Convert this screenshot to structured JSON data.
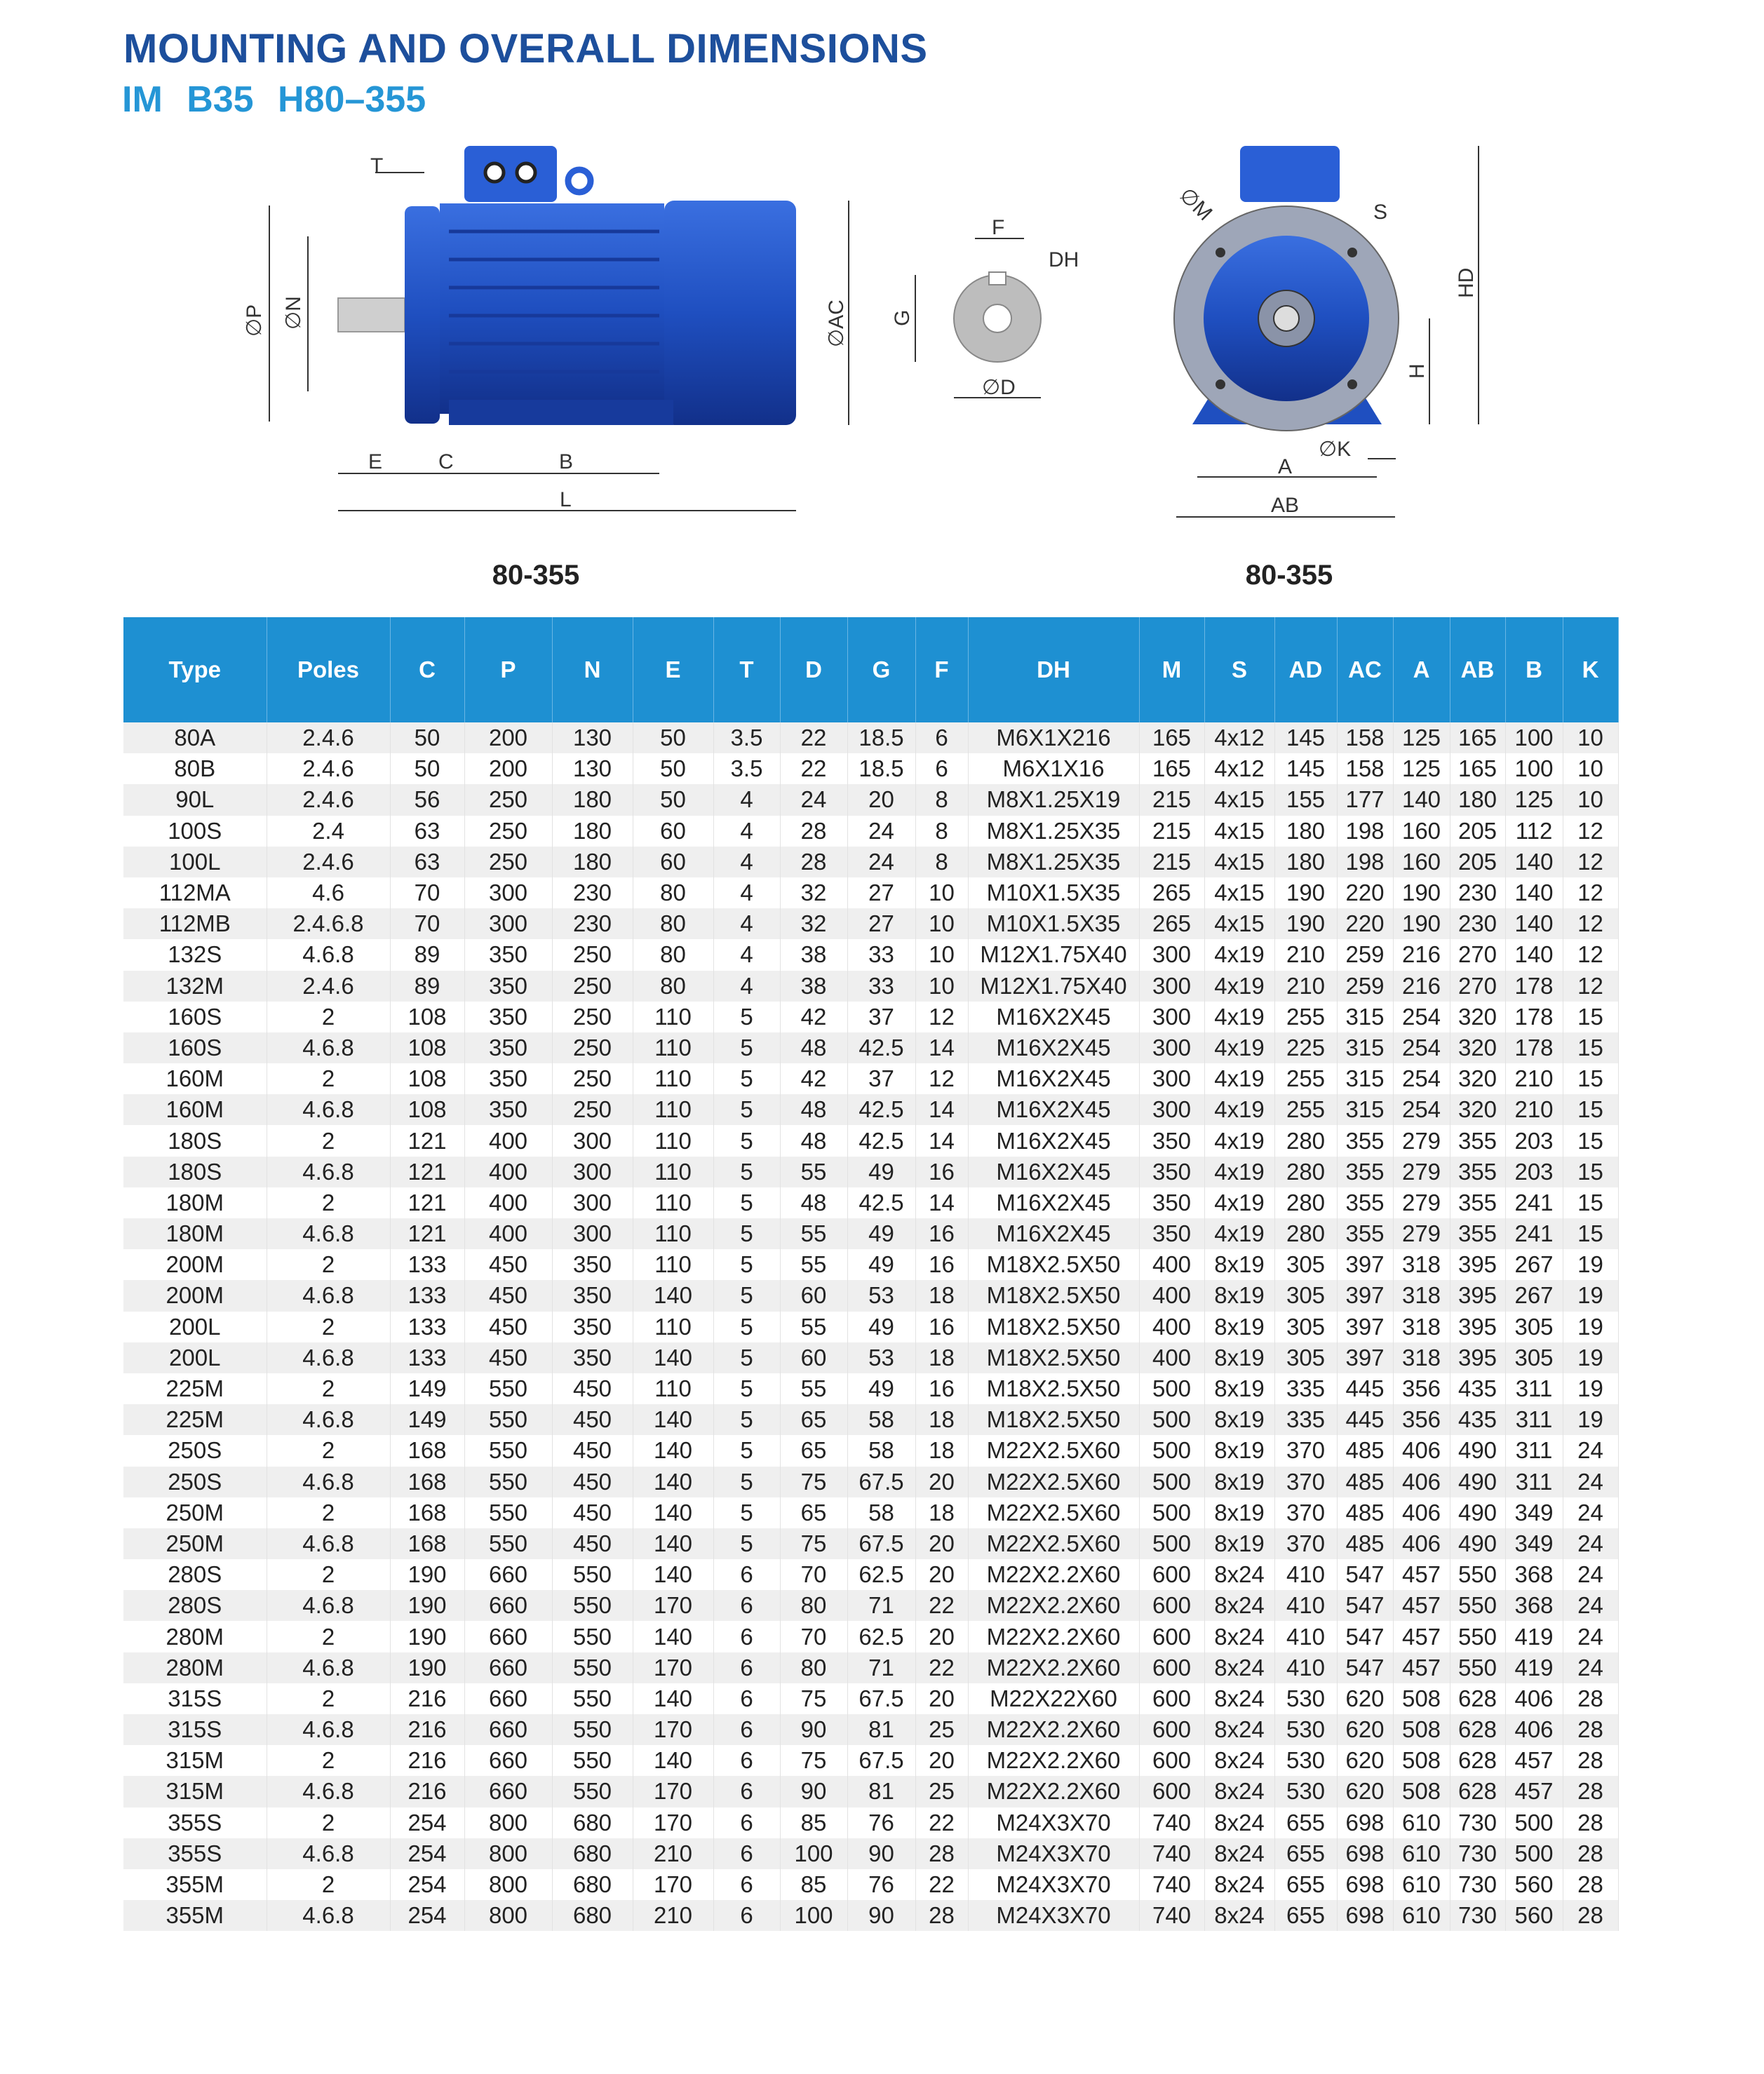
{
  "header": {
    "title": "MOUNTING AND OVERALL DIMENSIONS",
    "subtitle": "IM B35  H80–355"
  },
  "colors": {
    "title": "#1d4f9c",
    "subtitle": "#2596d6",
    "table_header": "#1e90d2",
    "motor_blue": "#1f4fc0",
    "row_stripe": "#efefef"
  },
  "diagrams": {
    "side_labels": {
      "T": "T",
      "P": "∅P",
      "N": "∅N",
      "E": "E",
      "C": "C",
      "B": "B",
      "L": "L",
      "AC": "∅AC"
    },
    "shaft_labels": {
      "F": "F",
      "DH": "DH",
      "G": "G",
      "D": "∅D"
    },
    "front_labels": {
      "M": "∅M",
      "S": "S",
      "HD": "HD",
      "H": "H",
      "K": "∅K",
      "A": "A",
      "AB": "AB"
    },
    "caption_left": "80-355",
    "caption_right": "80-355"
  },
  "table": {
    "columns": [
      "Type",
      "Poles",
      "C",
      "P",
      "N",
      "E",
      "T",
      "D",
      "G",
      "F",
      "DH",
      "M",
      "S",
      "AD",
      "AC",
      "A",
      "AB",
      "B",
      "K"
    ],
    "rows": [
      [
        "80A",
        "2.4.6",
        "50",
        "200",
        "130",
        "50",
        "3.5",
        "22",
        "18.5",
        "6",
        "M6X1X216",
        "165",
        "4x12",
        "145",
        "158",
        "125",
        "165",
        "100",
        "10"
      ],
      [
        "80B",
        "2.4.6",
        "50",
        "200",
        "130",
        "50",
        "3.5",
        "22",
        "18.5",
        "6",
        "M6X1X16",
        "165",
        "4x12",
        "145",
        "158",
        "125",
        "165",
        "100",
        "10"
      ],
      [
        "90L",
        "2.4.6",
        "56",
        "250",
        "180",
        "50",
        "4",
        "24",
        "20",
        "8",
        "M8X1.25X19",
        "215",
        "4x15",
        "155",
        "177",
        "140",
        "180",
        "125",
        "10"
      ],
      [
        "100S",
        "2.4",
        "63",
        "250",
        "180",
        "60",
        "4",
        "28",
        "24",
        "8",
        "M8X1.25X35",
        "215",
        "4x15",
        "180",
        "198",
        "160",
        "205",
        "112",
        "12"
      ],
      [
        "100L",
        "2.4.6",
        "63",
        "250",
        "180",
        "60",
        "4",
        "28",
        "24",
        "8",
        "M8X1.25X35",
        "215",
        "4x15",
        "180",
        "198",
        "160",
        "205",
        "140",
        "12"
      ],
      [
        "112MA",
        "4.6",
        "70",
        "300",
        "230",
        "80",
        "4",
        "32",
        "27",
        "10",
        "M10X1.5X35",
        "265",
        "4x15",
        "190",
        "220",
        "190",
        "230",
        "140",
        "12"
      ],
      [
        "112MB",
        "2.4.6.8",
        "70",
        "300",
        "230",
        "80",
        "4",
        "32",
        "27",
        "10",
        "M10X1.5X35",
        "265",
        "4x15",
        "190",
        "220",
        "190",
        "230",
        "140",
        "12"
      ],
      [
        "132S",
        "4.6.8",
        "89",
        "350",
        "250",
        "80",
        "4",
        "38",
        "33",
        "10",
        "M12X1.75X40",
        "300",
        "4x19",
        "210",
        "259",
        "216",
        "270",
        "140",
        "12"
      ],
      [
        "132M",
        "2.4.6",
        "89",
        "350",
        "250",
        "80",
        "4",
        "38",
        "33",
        "10",
        "M12X1.75X40",
        "300",
        "4x19",
        "210",
        "259",
        "216",
        "270",
        "178",
        "12"
      ],
      [
        "160S",
        "2",
        "108",
        "350",
        "250",
        "110",
        "5",
        "42",
        "37",
        "12",
        "M16X2X45",
        "300",
        "4x19",
        "255",
        "315",
        "254",
        "320",
        "178",
        "15"
      ],
      [
        "160S",
        "4.6.8",
        "108",
        "350",
        "250",
        "110",
        "5",
        "48",
        "42.5",
        "14",
        "M16X2X45",
        "300",
        "4x19",
        "225",
        "315",
        "254",
        "320",
        "178",
        "15"
      ],
      [
        "160M",
        "2",
        "108",
        "350",
        "250",
        "110",
        "5",
        "42",
        "37",
        "12",
        "M16X2X45",
        "300",
        "4x19",
        "255",
        "315",
        "254",
        "320",
        "210",
        "15"
      ],
      [
        "160M",
        "4.6.8",
        "108",
        "350",
        "250",
        "110",
        "5",
        "48",
        "42.5",
        "14",
        "M16X2X45",
        "300",
        "4x19",
        "255",
        "315",
        "254",
        "320",
        "210",
        "15"
      ],
      [
        "180S",
        "2",
        "121",
        "400",
        "300",
        "110",
        "5",
        "48",
        "42.5",
        "14",
        "M16X2X45",
        "350",
        "4x19",
        "280",
        "355",
        "279",
        "355",
        "203",
        "15"
      ],
      [
        "180S",
        "4.6.8",
        "121",
        "400",
        "300",
        "110",
        "5",
        "55",
        "49",
        "16",
        "M16X2X45",
        "350",
        "4x19",
        "280",
        "355",
        "279",
        "355",
        "203",
        "15"
      ],
      [
        "180M",
        "2",
        "121",
        "400",
        "300",
        "110",
        "5",
        "48",
        "42.5",
        "14",
        "M16X2X45",
        "350",
        "4x19",
        "280",
        "355",
        "279",
        "355",
        "241",
        "15"
      ],
      [
        "180M",
        "4.6.8",
        "121",
        "400",
        "300",
        "110",
        "5",
        "55",
        "49",
        "16",
        "M16X2X45",
        "350",
        "4x19",
        "280",
        "355",
        "279",
        "355",
        "241",
        "15"
      ],
      [
        "200M",
        "2",
        "133",
        "450",
        "350",
        "110",
        "5",
        "55",
        "49",
        "16",
        "M18X2.5X50",
        "400",
        "8x19",
        "305",
        "397",
        "318",
        "395",
        "267",
        "19"
      ],
      [
        "200M",
        "4.6.8",
        "133",
        "450",
        "350",
        "140",
        "5",
        "60",
        "53",
        "18",
        "M18X2.5X50",
        "400",
        "8x19",
        "305",
        "397",
        "318",
        "395",
        "267",
        "19"
      ],
      [
        "200L",
        "2",
        "133",
        "450",
        "350",
        "110",
        "5",
        "55",
        "49",
        "16",
        "M18X2.5X50",
        "400",
        "8x19",
        "305",
        "397",
        "318",
        "395",
        "305",
        "19"
      ],
      [
        "200L",
        "4.6.8",
        "133",
        "450",
        "350",
        "140",
        "5",
        "60",
        "53",
        "18",
        "M18X2.5X50",
        "400",
        "8x19",
        "305",
        "397",
        "318",
        "395",
        "305",
        "19"
      ],
      [
        "225M",
        "2",
        "149",
        "550",
        "450",
        "110",
        "5",
        "55",
        "49",
        "16",
        "M18X2.5X50",
        "500",
        "8x19",
        "335",
        "445",
        "356",
        "435",
        "311",
        "19"
      ],
      [
        "225M",
        "4.6.8",
        "149",
        "550",
        "450",
        "140",
        "5",
        "65",
        "58",
        "18",
        "M18X2.5X50",
        "500",
        "8x19",
        "335",
        "445",
        "356",
        "435",
        "311",
        "19"
      ],
      [
        "250S",
        "2",
        "168",
        "550",
        "450",
        "140",
        "5",
        "65",
        "58",
        "18",
        "M22X2.5X60",
        "500",
        "8x19",
        "370",
        "485",
        "406",
        "490",
        "311",
        "24"
      ],
      [
        "250S",
        "4.6.8",
        "168",
        "550",
        "450",
        "140",
        "5",
        "75",
        "67.5",
        "20",
        "M22X2.5X60",
        "500",
        "8x19",
        "370",
        "485",
        "406",
        "490",
        "311",
        "24"
      ],
      [
        "250M",
        "2",
        "168",
        "550",
        "450",
        "140",
        "5",
        "65",
        "58",
        "18",
        "M22X2.5X60",
        "500",
        "8x19",
        "370",
        "485",
        "406",
        "490",
        "349",
        "24"
      ],
      [
        "250M",
        "4.6.8",
        "168",
        "550",
        "450",
        "140",
        "5",
        "75",
        "67.5",
        "20",
        "M22X2.5X60",
        "500",
        "8x19",
        "370",
        "485",
        "406",
        "490",
        "349",
        "24"
      ],
      [
        "280S",
        "2",
        "190",
        "660",
        "550",
        "140",
        "6",
        "70",
        "62.5",
        "20",
        "M22X2.2X60",
        "600",
        "8x24",
        "410",
        "547",
        "457",
        "550",
        "368",
        "24"
      ],
      [
        "280S",
        "4.6.8",
        "190",
        "660",
        "550",
        "170",
        "6",
        "80",
        "71",
        "22",
        "M22X2.2X60",
        "600",
        "8x24",
        "410",
        "547",
        "457",
        "550",
        "368",
        "24"
      ],
      [
        "280M",
        "2",
        "190",
        "660",
        "550",
        "140",
        "6",
        "70",
        "62.5",
        "20",
        "M22X2.2X60",
        "600",
        "8x24",
        "410",
        "547",
        "457",
        "550",
        "419",
        "24"
      ],
      [
        "280M",
        "4.6.8",
        "190",
        "660",
        "550",
        "170",
        "6",
        "80",
        "71",
        "22",
        "M22X2.2X60",
        "600",
        "8x24",
        "410",
        "547",
        "457",
        "550",
        "419",
        "24"
      ],
      [
        "315S",
        "2",
        "216",
        "660",
        "550",
        "140",
        "6",
        "75",
        "67.5",
        "20",
        "M22X22X60",
        "600",
        "8x24",
        "530",
        "620",
        "508",
        "628",
        "406",
        "28"
      ],
      [
        "315S",
        "4.6.8",
        "216",
        "660",
        "550",
        "170",
        "6",
        "90",
        "81",
        "25",
        "M22X2.2X60",
        "600",
        "8x24",
        "530",
        "620",
        "508",
        "628",
        "406",
        "28"
      ],
      [
        "315M",
        "2",
        "216",
        "660",
        "550",
        "140",
        "6",
        "75",
        "67.5",
        "20",
        "M22X2.2X60",
        "600",
        "8x24",
        "530",
        "620",
        "508",
        "628",
        "457",
        "28"
      ],
      [
        "315M",
        "4.6.8",
        "216",
        "660",
        "550",
        "170",
        "6",
        "90",
        "81",
        "25",
        "M22X2.2X60",
        "600",
        "8x24",
        "530",
        "620",
        "508",
        "628",
        "457",
        "28"
      ],
      [
        "355S",
        "2",
        "254",
        "800",
        "680",
        "170",
        "6",
        "85",
        "76",
        "22",
        "M24X3X70",
        "740",
        "8x24",
        "655",
        "698",
        "610",
        "730",
        "500",
        "28"
      ],
      [
        "355S",
        "4.6.8",
        "254",
        "800",
        "680",
        "210",
        "6",
        "100",
        "90",
        "28",
        "M24X3X70",
        "740",
        "8x24",
        "655",
        "698",
        "610",
        "730",
        "500",
        "28"
      ],
      [
        "355M",
        "2",
        "254",
        "800",
        "680",
        "170",
        "6",
        "85",
        "76",
        "22",
        "M24X3X70",
        "740",
        "8x24",
        "655",
        "698",
        "610",
        "730",
        "560",
        "28"
      ],
      [
        "355M",
        "4.6.8",
        "254",
        "800",
        "680",
        "210",
        "6",
        "100",
        "90",
        "28",
        "M24X3X70",
        "740",
        "8x24",
        "655",
        "698",
        "610",
        "730",
        "560",
        "28"
      ]
    ]
  }
}
